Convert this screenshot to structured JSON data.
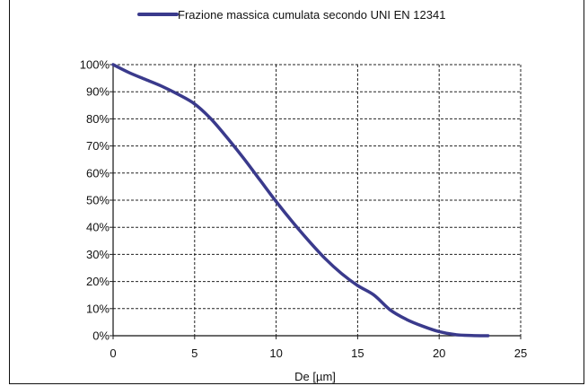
{
  "chart_data": {
    "type": "line",
    "title": "",
    "xlabel": "De [µm]",
    "ylabel": "",
    "xlim": [
      0,
      25
    ],
    "ylim": [
      0,
      100
    ],
    "x_ticks": [
      "0",
      "5",
      "10",
      "15",
      "20",
      "25"
    ],
    "y_ticks": [
      "0%",
      "10%",
      "20%",
      "30%",
      "40%",
      "50%",
      "60%",
      "70%",
      "80%",
      "90%",
      "100%"
    ],
    "grid": true,
    "legend_position": "top",
    "series": [
      {
        "name": "Frazione massica cumulata secondo UNI EN 12341",
        "color": "#3a3a8c",
        "x": [
          0,
          1,
          2,
          3,
          4,
          5,
          6,
          7,
          8,
          9,
          10,
          11,
          12,
          13,
          14,
          15,
          16,
          17,
          18,
          19,
          20,
          21,
          22,
          23
        ],
        "y": [
          100,
          97,
          94.5,
          92,
          89,
          85.5,
          80,
          73,
          65.5,
          57.5,
          49.5,
          42,
          35,
          28.5,
          23,
          18.5,
          15,
          9.5,
          6,
          3.5,
          1.5,
          0.4,
          0.1,
          0
        ]
      }
    ]
  }
}
